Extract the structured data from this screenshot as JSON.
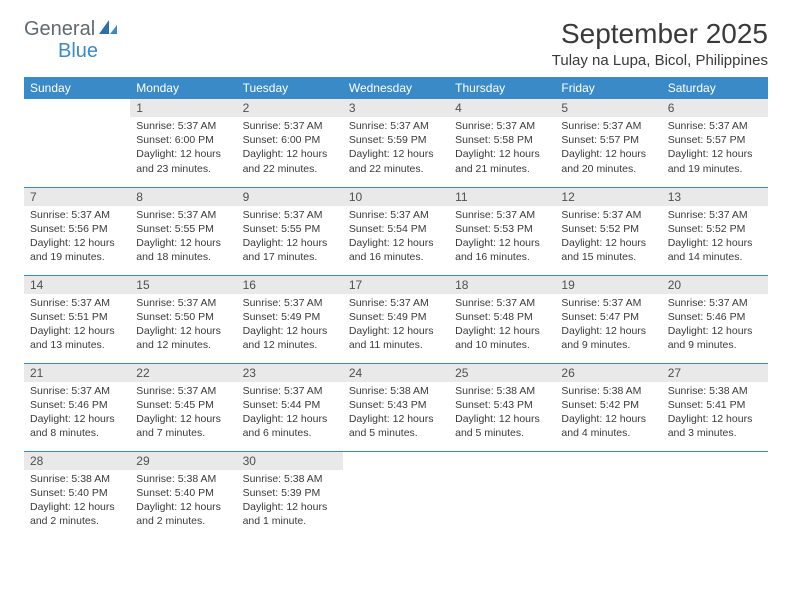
{
  "logo": {
    "general": "General",
    "blue": "Blue"
  },
  "title": "September 2025",
  "location": "Tulay na Lupa, Bicol, Philippines",
  "colors": {
    "header_bg": "#3a8ac8",
    "header_fg": "#ffffff",
    "daynum_bg": "#e9e9e9",
    "border": "#3a8ac8",
    "text": "#3a3a3a",
    "logo_gray": "#5f6a72",
    "logo_blue": "#3a8ac8"
  },
  "fonts": {
    "title_size": 28,
    "location_size": 15,
    "th_size": 12,
    "cell_size": 10.5
  },
  "weekdays": [
    "Sunday",
    "Monday",
    "Tuesday",
    "Wednesday",
    "Thursday",
    "Friday",
    "Saturday"
  ],
  "weeks": [
    [
      null,
      {
        "n": "1",
        "sr": "Sunrise: 5:37 AM",
        "ss": "Sunset: 6:00 PM",
        "d1": "Daylight: 12 hours",
        "d2": "and 23 minutes."
      },
      {
        "n": "2",
        "sr": "Sunrise: 5:37 AM",
        "ss": "Sunset: 6:00 PM",
        "d1": "Daylight: 12 hours",
        "d2": "and 22 minutes."
      },
      {
        "n": "3",
        "sr": "Sunrise: 5:37 AM",
        "ss": "Sunset: 5:59 PM",
        "d1": "Daylight: 12 hours",
        "d2": "and 22 minutes."
      },
      {
        "n": "4",
        "sr": "Sunrise: 5:37 AM",
        "ss": "Sunset: 5:58 PM",
        "d1": "Daylight: 12 hours",
        "d2": "and 21 minutes."
      },
      {
        "n": "5",
        "sr": "Sunrise: 5:37 AM",
        "ss": "Sunset: 5:57 PM",
        "d1": "Daylight: 12 hours",
        "d2": "and 20 minutes."
      },
      {
        "n": "6",
        "sr": "Sunrise: 5:37 AM",
        "ss": "Sunset: 5:57 PM",
        "d1": "Daylight: 12 hours",
        "d2": "and 19 minutes."
      }
    ],
    [
      {
        "n": "7",
        "sr": "Sunrise: 5:37 AM",
        "ss": "Sunset: 5:56 PM",
        "d1": "Daylight: 12 hours",
        "d2": "and 19 minutes."
      },
      {
        "n": "8",
        "sr": "Sunrise: 5:37 AM",
        "ss": "Sunset: 5:55 PM",
        "d1": "Daylight: 12 hours",
        "d2": "and 18 minutes."
      },
      {
        "n": "9",
        "sr": "Sunrise: 5:37 AM",
        "ss": "Sunset: 5:55 PM",
        "d1": "Daylight: 12 hours",
        "d2": "and 17 minutes."
      },
      {
        "n": "10",
        "sr": "Sunrise: 5:37 AM",
        "ss": "Sunset: 5:54 PM",
        "d1": "Daylight: 12 hours",
        "d2": "and 16 minutes."
      },
      {
        "n": "11",
        "sr": "Sunrise: 5:37 AM",
        "ss": "Sunset: 5:53 PM",
        "d1": "Daylight: 12 hours",
        "d2": "and 16 minutes."
      },
      {
        "n": "12",
        "sr": "Sunrise: 5:37 AM",
        "ss": "Sunset: 5:52 PM",
        "d1": "Daylight: 12 hours",
        "d2": "and 15 minutes."
      },
      {
        "n": "13",
        "sr": "Sunrise: 5:37 AM",
        "ss": "Sunset: 5:52 PM",
        "d1": "Daylight: 12 hours",
        "d2": "and 14 minutes."
      }
    ],
    [
      {
        "n": "14",
        "sr": "Sunrise: 5:37 AM",
        "ss": "Sunset: 5:51 PM",
        "d1": "Daylight: 12 hours",
        "d2": "and 13 minutes."
      },
      {
        "n": "15",
        "sr": "Sunrise: 5:37 AM",
        "ss": "Sunset: 5:50 PM",
        "d1": "Daylight: 12 hours",
        "d2": "and 12 minutes."
      },
      {
        "n": "16",
        "sr": "Sunrise: 5:37 AM",
        "ss": "Sunset: 5:49 PM",
        "d1": "Daylight: 12 hours",
        "d2": "and 12 minutes."
      },
      {
        "n": "17",
        "sr": "Sunrise: 5:37 AM",
        "ss": "Sunset: 5:49 PM",
        "d1": "Daylight: 12 hours",
        "d2": "and 11 minutes."
      },
      {
        "n": "18",
        "sr": "Sunrise: 5:37 AM",
        "ss": "Sunset: 5:48 PM",
        "d1": "Daylight: 12 hours",
        "d2": "and 10 minutes."
      },
      {
        "n": "19",
        "sr": "Sunrise: 5:37 AM",
        "ss": "Sunset: 5:47 PM",
        "d1": "Daylight: 12 hours",
        "d2": "and 9 minutes."
      },
      {
        "n": "20",
        "sr": "Sunrise: 5:37 AM",
        "ss": "Sunset: 5:46 PM",
        "d1": "Daylight: 12 hours",
        "d2": "and 9 minutes."
      }
    ],
    [
      {
        "n": "21",
        "sr": "Sunrise: 5:37 AM",
        "ss": "Sunset: 5:46 PM",
        "d1": "Daylight: 12 hours",
        "d2": "and 8 minutes."
      },
      {
        "n": "22",
        "sr": "Sunrise: 5:37 AM",
        "ss": "Sunset: 5:45 PM",
        "d1": "Daylight: 12 hours",
        "d2": "and 7 minutes."
      },
      {
        "n": "23",
        "sr": "Sunrise: 5:37 AM",
        "ss": "Sunset: 5:44 PM",
        "d1": "Daylight: 12 hours",
        "d2": "and 6 minutes."
      },
      {
        "n": "24",
        "sr": "Sunrise: 5:38 AM",
        "ss": "Sunset: 5:43 PM",
        "d1": "Daylight: 12 hours",
        "d2": "and 5 minutes."
      },
      {
        "n": "25",
        "sr": "Sunrise: 5:38 AM",
        "ss": "Sunset: 5:43 PM",
        "d1": "Daylight: 12 hours",
        "d2": "and 5 minutes."
      },
      {
        "n": "26",
        "sr": "Sunrise: 5:38 AM",
        "ss": "Sunset: 5:42 PM",
        "d1": "Daylight: 12 hours",
        "d2": "and 4 minutes."
      },
      {
        "n": "27",
        "sr": "Sunrise: 5:38 AM",
        "ss": "Sunset: 5:41 PM",
        "d1": "Daylight: 12 hours",
        "d2": "and 3 minutes."
      }
    ],
    [
      {
        "n": "28",
        "sr": "Sunrise: 5:38 AM",
        "ss": "Sunset: 5:40 PM",
        "d1": "Daylight: 12 hours",
        "d2": "and 2 minutes."
      },
      {
        "n": "29",
        "sr": "Sunrise: 5:38 AM",
        "ss": "Sunset: 5:40 PM",
        "d1": "Daylight: 12 hours",
        "d2": "and 2 minutes."
      },
      {
        "n": "30",
        "sr": "Sunrise: 5:38 AM",
        "ss": "Sunset: 5:39 PM",
        "d1": "Daylight: 12 hours",
        "d2": "and 1 minute."
      },
      null,
      null,
      null,
      null
    ]
  ]
}
